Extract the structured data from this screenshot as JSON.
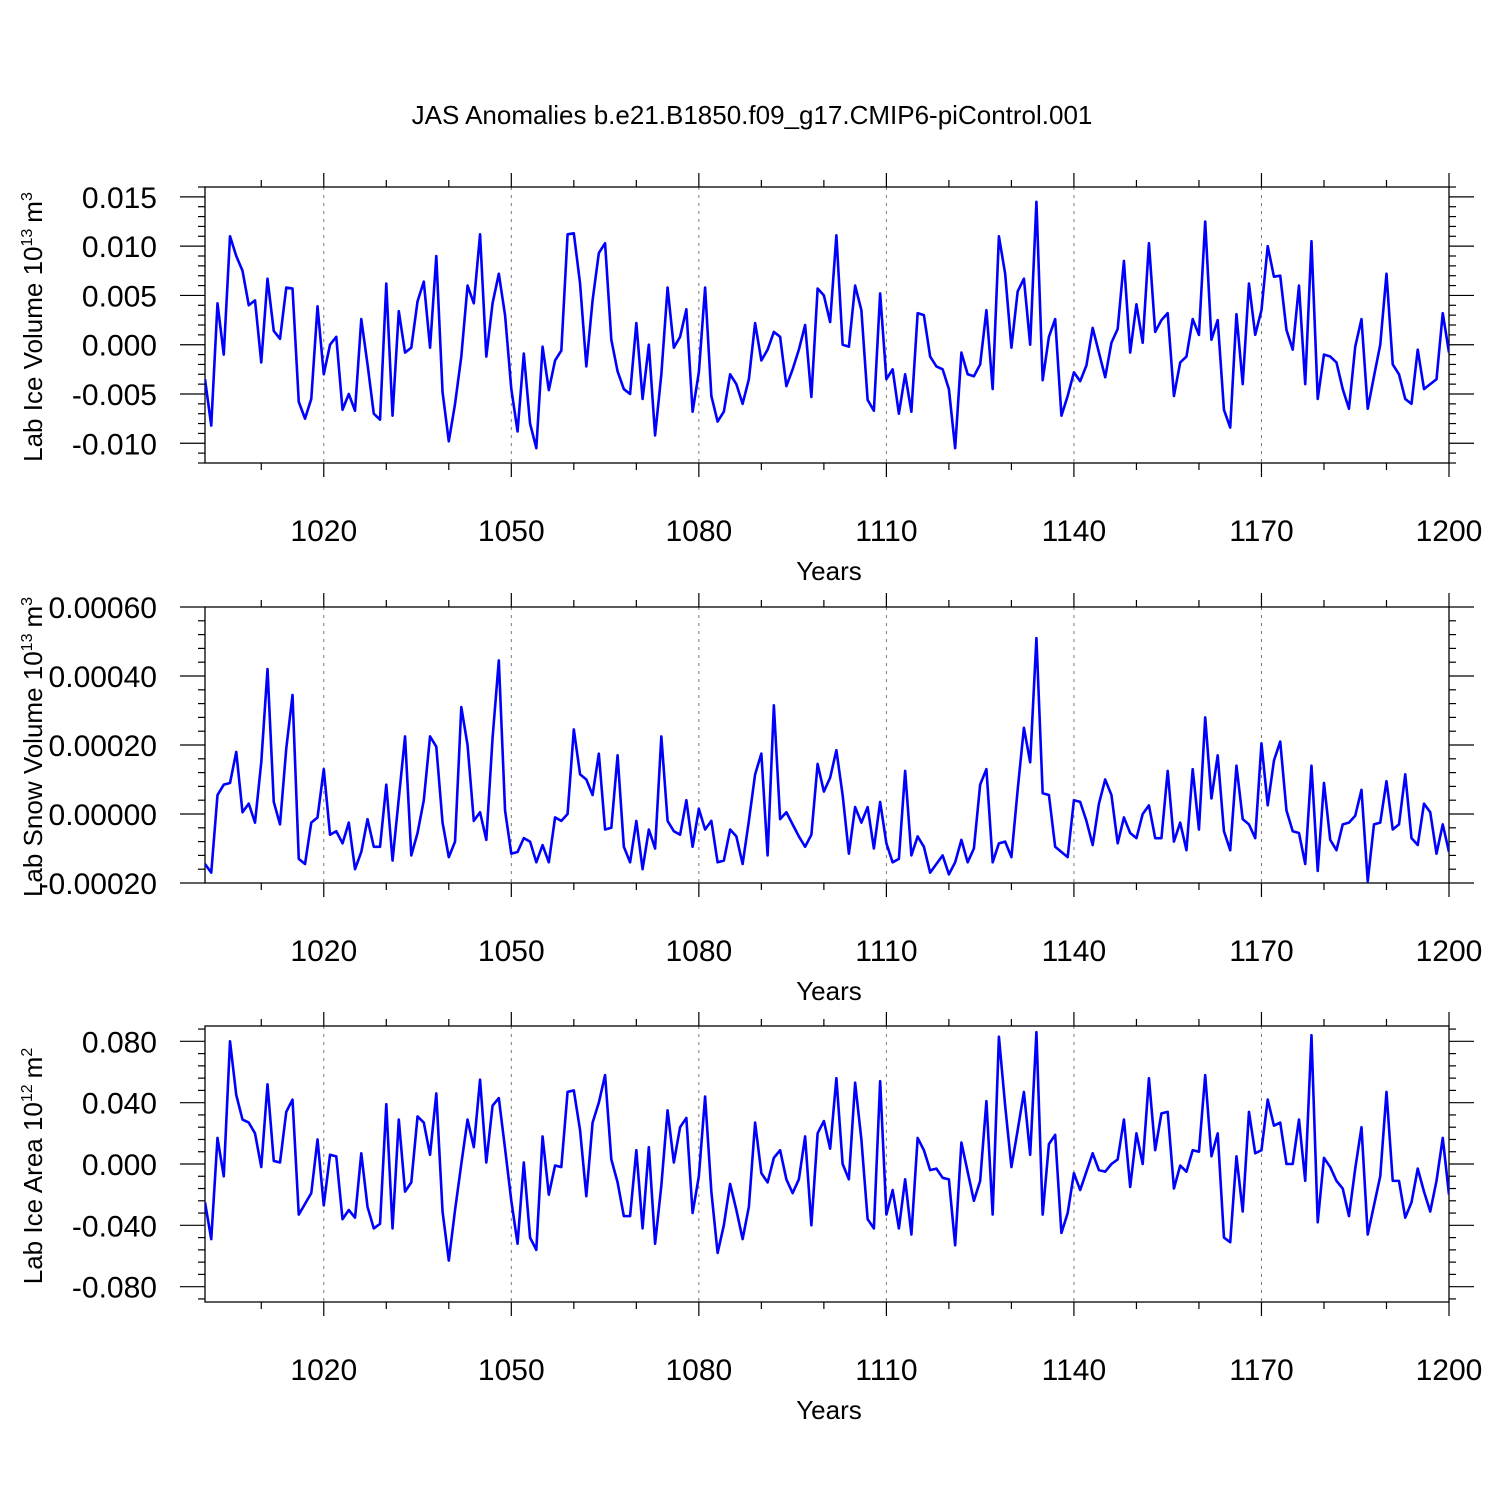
{
  "title": "JAS Anomalies b.e21.B1850.f09_g17.CMIP6-piControl.001",
  "line_color": "#0000ff",
  "chart_data": [
    {
      "type": "line",
      "xlabel": "Years",
      "ylabel_main": "Lab Ice Volume 10",
      "ylabel_exp": "13",
      "ylabel_unit": "m",
      "ylabel_unit_exp": "3",
      "xlim": [
        1001,
        1200
      ],
      "ylim": [
        -0.012,
        0.016
      ],
      "xticks": [
        1020,
        1050,
        1080,
        1110,
        1140,
        1170,
        1200
      ],
      "xtick_labels": [
        "1020",
        "1050",
        "1080",
        "1110",
        "1140",
        "1170",
        "1200"
      ],
      "yticks": [
        0.015,
        0.01,
        0.005,
        0.0,
        -0.005,
        -0.01
      ],
      "ytick_labels": [
        "0.015",
        "0.010",
        "0.005",
        "0.000",
        "-0.005",
        "-0.010"
      ],
      "x_start": 1001,
      "values": [
        -0.0035,
        -0.0082,
        0.0042,
        -0.001,
        0.011,
        0.009,
        0.0075,
        0.004,
        0.0045,
        -0.0018,
        0.0067,
        0.0014,
        0.0006,
        0.0058,
        0.0057,
        -0.0058,
        -0.0075,
        -0.0055,
        0.0039,
        -0.003,
        0.0,
        0.0008,
        -0.0066,
        -0.005,
        -0.0067,
        0.0026,
        -0.002,
        -0.007,
        -0.0076,
        0.0062,
        -0.0072,
        0.0034,
        -0.0008,
        -0.0003,
        0.0044,
        0.0064,
        -0.0003,
        0.009,
        -0.0048,
        -0.0098,
        -0.006,
        -0.0012,
        0.006,
        0.0042,
        0.0112,
        -0.0012,
        0.0042,
        0.0072,
        0.003,
        -0.0045,
        -0.0088,
        -0.0009,
        -0.008,
        -0.0105,
        -0.0002,
        -0.0046,
        -0.0016,
        -0.0006,
        0.0112,
        0.0113,
        0.0062,
        -0.0022,
        0.0045,
        0.0093,
        0.0103,
        0.0005,
        -0.0027,
        -0.0045,
        -0.005,
        0.0022,
        -0.0055,
        0.0,
        -0.0092,
        -0.003,
        0.0058,
        -0.0003,
        0.0008,
        0.0036,
        -0.0068,
        -0.0028,
        0.0058,
        -0.0052,
        -0.0078,
        -0.0068,
        -0.003,
        -0.004,
        -0.006,
        -0.0035,
        0.0022,
        -0.0016,
        -0.0005,
        0.0013,
        0.0008,
        -0.0042,
        -0.0025,
        -0.0005,
        0.002,
        -0.0053,
        0.0057,
        0.005,
        0.0023,
        0.0111,
        0.0,
        -0.0002,
        0.006,
        0.0035,
        -0.0056,
        -0.0067,
        0.0052,
        -0.0035,
        -0.0025,
        -0.007,
        -0.003,
        -0.0068,
        0.0032,
        0.003,
        -0.0012,
        -0.0022,
        -0.0025,
        -0.0045,
        -0.0105,
        -0.0008,
        -0.003,
        -0.0032,
        -0.002,
        0.0035,
        -0.0045,
        0.011,
        0.0072,
        -0.0003,
        0.0054,
        0.0067,
        0.0,
        0.0145,
        -0.0036,
        0.0008,
        0.0026,
        -0.0072,
        -0.0052,
        -0.0028,
        -0.0037,
        -0.0021,
        0.0017,
        -0.0008,
        -0.0033,
        0.0002,
        0.0016,
        0.0085,
        -0.0008,
        0.0041,
        0.0002,
        0.0103,
        0.0013,
        0.0025,
        0.0032,
        -0.0052,
        -0.0018,
        -0.0012,
        0.0026,
        0.001,
        0.0125,
        0.0005,
        0.0025,
        -0.0066,
        -0.0084,
        0.0031,
        -0.004,
        0.0062,
        0.001,
        0.0035,
        0.01,
        0.0069,
        0.007,
        0.0015,
        -0.0005,
        0.006,
        -0.004,
        0.0105,
        -0.0055,
        -0.001,
        -0.0012,
        -0.0018,
        -0.0045,
        -0.0065,
        -0.0002,
        0.0026,
        -0.0065,
        -0.0032,
        0.0,
        0.0072,
        -0.002,
        -0.003,
        -0.0055,
        -0.006,
        -0.0005,
        -0.0045,
        -0.004,
        -0.0035,
        0.0032,
        -0.0008
      ]
    },
    {
      "type": "line",
      "xlabel": "Years",
      "ylabel_main": "Lab Snow Volume 10",
      "ylabel_exp": "13",
      "ylabel_unit": "m",
      "ylabel_unit_exp": "3",
      "xlim": [
        1001,
        1200
      ],
      "ylim": [
        -0.0002,
        0.0006
      ],
      "xticks": [
        1020,
        1050,
        1080,
        1110,
        1140,
        1170,
        1200
      ],
      "xtick_labels": [
        "1020",
        "1050",
        "1080",
        "1110",
        "1140",
        "1170",
        "1200"
      ],
      "yticks": [
        0.0006,
        0.0004,
        0.0002,
        0.0,
        -0.0002
      ],
      "ytick_labels": [
        "0.00060",
        "0.00040",
        "0.00020",
        "0.00000",
        "-0.00020"
      ],
      "x_start": 1001,
      "values": [
        -0.000145,
        -0.00017,
        5.5e-05,
        8.5e-05,
        9e-05,
        0.00018,
        5e-06,
        3e-05,
        -2.5e-05,
        0.00015,
        0.00042,
        3.5e-05,
        -3e-05,
        0.00019,
        0.000345,
        -0.00013,
        -0.000145,
        -2.5e-05,
        -1e-05,
        0.00013,
        -6e-05,
        -5e-05,
        -8.5e-05,
        -2.5e-05,
        -0.00016,
        -0.00011,
        -1.5e-05,
        -9.5e-05,
        -9.5e-05,
        8.5e-05,
        -0.000135,
        4.5e-05,
        0.000225,
        -0.00012,
        -5.5e-05,
        4e-05,
        0.000225,
        0.000195,
        -2.5e-05,
        -0.000125,
        -8e-05,
        0.00031,
        0.0002,
        -2e-05,
        5e-06,
        -7.5e-05,
        0.00022,
        0.000445,
        1e-05,
        -0.000115,
        -0.00011,
        -7e-05,
        -8e-05,
        -0.00014,
        -9e-05,
        -0.00014,
        -1e-05,
        -2e-05,
        0.0,
        0.000245,
        0.000115,
        0.0001,
        5.5e-05,
        0.000175,
        -4.5e-05,
        -4e-05,
        0.00017,
        -9.5e-05,
        -0.00014,
        -2e-05,
        -0.00016,
        -4.5e-05,
        -0.0001,
        0.000225,
        -2e-05,
        -5e-05,
        -6e-05,
        4e-05,
        -9.5e-05,
        1.5e-05,
        -4.5e-05,
        -2e-05,
        -0.00014,
        -0.000135,
        -4.5e-05,
        -6.5e-05,
        -0.000145,
        -2e-05,
        0.000115,
        0.000175,
        -0.00012,
        0.000315,
        -1.5e-05,
        5e-06,
        -3e-05,
        -6.5e-05,
        -9.5e-05,
        -6e-05,
        0.000145,
        6.5e-05,
        0.000105,
        0.000185,
        5.5e-05,
        -0.000115,
        2e-05,
        -2.5e-05,
        2e-05,
        -0.0001,
        3.5e-05,
        -8.5e-05,
        -0.00014,
        -0.00013,
        0.000125,
        -0.00012,
        -6.5e-05,
        -9.5e-05,
        -0.00017,
        -0.000145,
        -0.00012,
        -0.000175,
        -0.00014,
        -7.5e-05,
        -0.00014,
        -0.0001,
        8.5e-05,
        0.00013,
        -0.00014,
        -8.5e-05,
        -8e-05,
        -0.000125,
        7e-05,
        0.00025,
        0.00015,
        0.00051,
        6e-05,
        5.5e-05,
        -9.5e-05,
        -0.00011,
        -0.000125,
        4e-05,
        3.5e-05,
        -2e-05,
        -9e-05,
        3e-05,
        0.0001,
        5.5e-05,
        -8.5e-05,
        -1e-05,
        -5.5e-05,
        -7e-05,
        0.0,
        2.5e-05,
        -7e-05,
        -7e-05,
        0.000125,
        -8e-05,
        -2.5e-05,
        -0.000105,
        0.00013,
        -4.5e-05,
        0.00028,
        4.5e-05,
        0.00017,
        -5e-05,
        -0.000105,
        0.00014,
        -1.5e-05,
        -3e-05,
        -7e-05,
        0.000205,
        2.5e-05,
        0.000155,
        0.00021,
        1e-05,
        -5e-05,
        -5.5e-05,
        -0.000145,
        0.00014,
        -0.000165,
        9e-05,
        -7.5e-05,
        -0.000105,
        -3e-05,
        -2.5e-05,
        -5e-06,
        7e-05,
        -0.000195,
        -3e-05,
        -2.5e-05,
        9.5e-05,
        -4.5e-05,
        -3e-05,
        0.000115,
        -7e-05,
        -9e-05,
        3e-05,
        5e-06,
        -0.000115,
        -3e-05,
        -0.00011
      ]
    },
    {
      "type": "line",
      "xlabel": "Years",
      "ylabel_main": "Lab Ice Area 10",
      "ylabel_exp": "12",
      "ylabel_unit": "m",
      "ylabel_unit_exp": "2",
      "xlim": [
        1001,
        1200
      ],
      "ylim": [
        -0.09,
        0.09
      ],
      "xticks": [
        1020,
        1050,
        1080,
        1110,
        1140,
        1170,
        1200
      ],
      "xtick_labels": [
        "1020",
        "1050",
        "1080",
        "1110",
        "1140",
        "1170",
        "1200"
      ],
      "yticks": [
        0.08,
        0.04,
        0.0,
        -0.04,
        -0.08
      ],
      "ytick_labels": [
        "0.080",
        "0.040",
        "0.000",
        "-0.040",
        "-0.080"
      ],
      "x_start": 1001,
      "values": [
        -0.025,
        -0.049,
        0.017,
        -0.008,
        0.08,
        0.045,
        0.029,
        0.027,
        0.02,
        -0.002,
        0.052,
        0.002,
        0.001,
        0.034,
        0.042,
        -0.033,
        -0.026,
        -0.019,
        0.016,
        -0.027,
        0.006,
        0.005,
        -0.036,
        -0.03,
        -0.035,
        0.007,
        -0.028,
        -0.042,
        -0.039,
        0.039,
        -0.042,
        0.029,
        -0.018,
        -0.012,
        0.031,
        0.027,
        0.006,
        0.046,
        -0.031,
        -0.063,
        -0.03,
        0.0,
        0.029,
        0.011,
        0.055,
        0.001,
        0.038,
        0.043,
        0.01,
        -0.024,
        -0.052,
        0.001,
        -0.048,
        -0.056,
        0.018,
        -0.02,
        -0.001,
        -0.002,
        0.047,
        0.048,
        0.022,
        -0.021,
        0.027,
        0.04,
        0.058,
        0.003,
        -0.012,
        -0.034,
        -0.034,
        0.009,
        -0.042,
        0.011,
        -0.052,
        -0.014,
        0.035,
        0.001,
        0.024,
        0.03,
        -0.032,
        -0.008,
        0.044,
        -0.018,
        -0.058,
        -0.04,
        -0.013,
        -0.03,
        -0.049,
        -0.028,
        0.027,
        -0.006,
        -0.012,
        0.004,
        0.009,
        -0.01,
        -0.019,
        -0.01,
        0.018,
        -0.04,
        0.02,
        0.028,
        0.01,
        0.056,
        0.0,
        -0.01,
        0.053,
        0.016,
        -0.036,
        -0.042,
        0.054,
        -0.033,
        -0.017,
        -0.042,
        -0.01,
        -0.046,
        0.017,
        0.009,
        -0.004,
        -0.003,
        -0.009,
        -0.01,
        -0.053,
        0.014,
        -0.005,
        -0.024,
        -0.011,
        0.041,
        -0.033,
        0.083,
        0.038,
        -0.002,
        0.022,
        0.047,
        0.006,
        0.086,
        -0.033,
        0.013,
        0.019,
        -0.045,
        -0.032,
        -0.006,
        -0.017,
        -0.005,
        0.007,
        -0.004,
        -0.005,
        0.0,
        0.003,
        0.029,
        -0.015,
        0.02,
        0.0,
        0.056,
        0.009,
        0.033,
        0.034,
        -0.016,
        -0.001,
        -0.005,
        0.009,
        0.008,
        0.058,
        0.005,
        0.02,
        -0.048,
        -0.051,
        0.005,
        -0.031,
        0.034,
        0.007,
        0.009,
        0.042,
        0.025,
        0.027,
        0.0,
        0.0,
        0.029,
        -0.011,
        0.084,
        -0.038,
        0.004,
        -0.002,
        -0.011,
        -0.016,
        -0.034,
        -0.003,
        0.024,
        -0.046,
        -0.027,
        -0.008,
        0.047,
        -0.011,
        -0.011,
        -0.035,
        -0.025,
        -0.003,
        -0.018,
        -0.031,
        -0.011,
        0.017,
        -0.02
      ]
    }
  ]
}
